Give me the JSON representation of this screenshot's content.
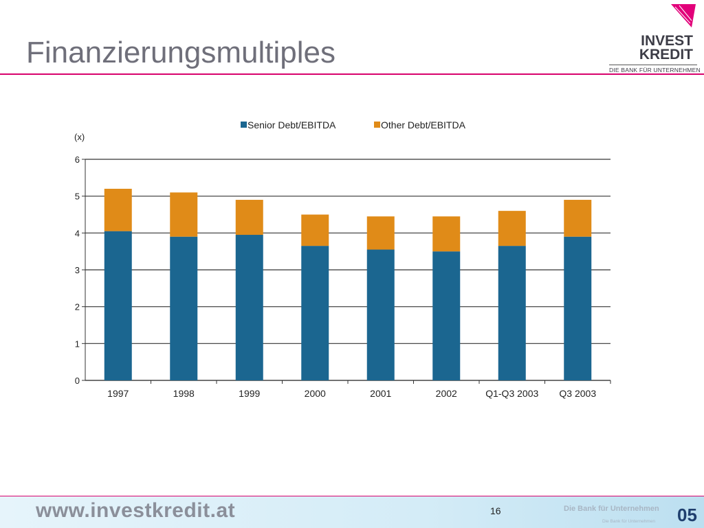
{
  "slide": {
    "title": "Finanzierungsmultiples",
    "page_number": "16"
  },
  "logo": {
    "line1": "INVEST",
    "line2": "KREDIT",
    "tagline": "DIE BANK FÜR UNTERNEHMEN"
  },
  "footer": {
    "url": "www.investkredit.at",
    "tagline": "Die Bank für Unternehmen",
    "tagline_small": "Die Bank für Unternehmen",
    "year_mark": "05"
  },
  "colors": {
    "senior": "#1b6690",
    "other": "#e08b18",
    "accent": "#d8006c"
  },
  "chart_data": {
    "type": "bar",
    "stacked": true,
    "ylabel": "(x)",
    "ylim": [
      0,
      6
    ],
    "yticks": [
      0,
      1,
      2,
      3,
      4,
      5,
      6
    ],
    "grid": true,
    "legend_position": "top",
    "categories": [
      "1997",
      "1998",
      "1999",
      "2000",
      "2001",
      "2002",
      "Q1-Q3 2003",
      "Q3 2003"
    ],
    "series": [
      {
        "name": "Senior Debt/EBITDA",
        "values": [
          4.05,
          3.9,
          3.95,
          3.65,
          3.55,
          3.5,
          3.65,
          3.9
        ]
      },
      {
        "name": "Other Debt/EBITDA",
        "values": [
          1.15,
          1.2,
          0.95,
          0.85,
          0.9,
          0.95,
          0.95,
          1.0
        ]
      }
    ]
  }
}
